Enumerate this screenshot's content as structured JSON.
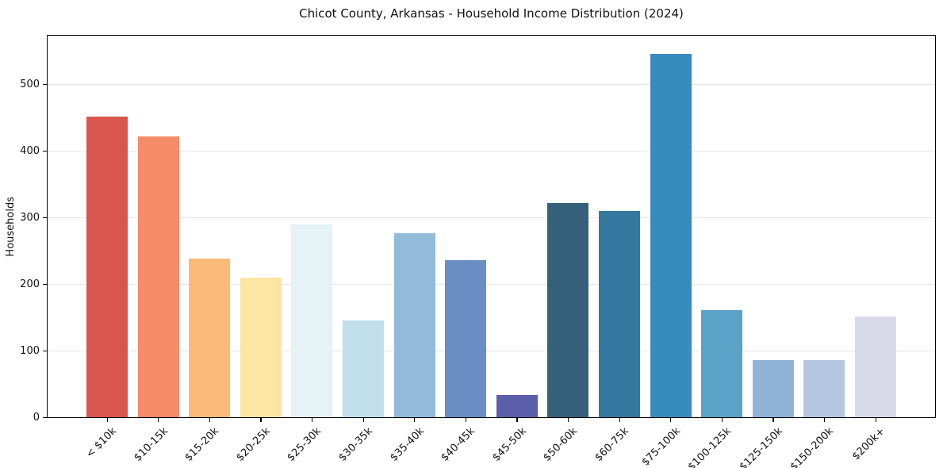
{
  "chart_data": {
    "type": "bar",
    "title": "Chicot County, Arkansas - Household Income Distribution (2024)",
    "ylabel": "Households",
    "xlabel": "",
    "categories": [
      "< $10k",
      "$10-15k",
      "$15-20k",
      "$20-25k",
      "$25-30k",
      "$30-35k",
      "$35-40k",
      "$40-45k",
      "$45-50k",
      "$50-60k",
      "$60-75k",
      "$75-100k",
      "$100-125k",
      "$125-150k",
      "$150-200k",
      "$200k+"
    ],
    "values": [
      451,
      422,
      238,
      210,
      289,
      145,
      276,
      236,
      33,
      322,
      310,
      546,
      161,
      86,
      86,
      151
    ],
    "bar_colors": [
      "#d9564f",
      "#f58b68",
      "#fbba77",
      "#fde5a4",
      "#e5f2f6",
      "#c0dfeb",
      "#91bbd8",
      "#6a8ec3",
      "#5b5fab",
      "#35607a",
      "#35789f",
      "#388bbe",
      "#5aa2c8",
      "#8eb3d7",
      "#b5c7e0",
      "#d8dae9"
    ],
    "yticks": [
      0,
      100,
      200,
      300,
      400,
      500
    ],
    "ylim": [
      0,
      573
    ],
    "grid": "horizontal-light",
    "legend": "none"
  }
}
